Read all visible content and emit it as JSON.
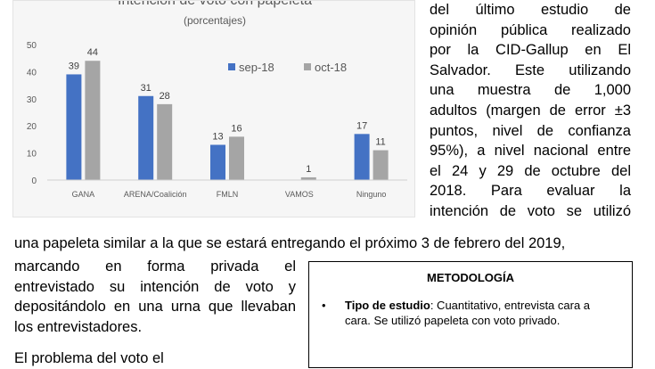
{
  "chart_data": {
    "type": "bar",
    "title": "Intención de voto con papeleta",
    "subtitle": "(porcentajes)",
    "categories": [
      "GANA",
      "ARENA/Coalición",
      "FMLN",
      "VAMOS",
      "Ninguno"
    ],
    "series": [
      {
        "name": "sep-18",
        "values": [
          39,
          31,
          13,
          null,
          17
        ],
        "color": "#4472c4"
      },
      {
        "name": "oct-18",
        "values": [
          44,
          28,
          16,
          1,
          11
        ],
        "color": "#a5a5a5"
      }
    ],
    "ylim": [
      0,
      50
    ],
    "yticks": [
      0,
      10,
      20,
      30,
      40,
      50
    ],
    "grid": false,
    "legend_position": "top-right",
    "data_labels": true
  },
  "right_text": {
    "lines": [
      "del último estudio de",
      "opinión pública realizado",
      "por la CID-Gallup en El",
      "Salvador. Este utilizando",
      "una muestra de 1,000",
      "adultos (margen de error ±3",
      "puntos, nivel de confianza",
      "95%), a nivel nacional entre",
      "el 24 y 29 de octubre del",
      "2018. Para evaluar la",
      "intención de voto se utilizó"
    ]
  },
  "full_line": "una papeleta similar a la que se estará entregando el próximo 3 de febrero del 2019,",
  "left_text": {
    "lines": [
      "marcando en forma privada el",
      "entrevistado su intención de voto y",
      "depositándolo en una urna que llevaban",
      "los entrevistadores."
    ]
  },
  "bottom_cut_text": "El problema del voto el",
  "methodology": {
    "title": "METODOLOGÍA",
    "bullet": "•",
    "item_label": "Tipo de estudio",
    "item_text": ": Cuantitativo, entrevista cara a cara. Se utilizó papeleta con voto privado."
  }
}
